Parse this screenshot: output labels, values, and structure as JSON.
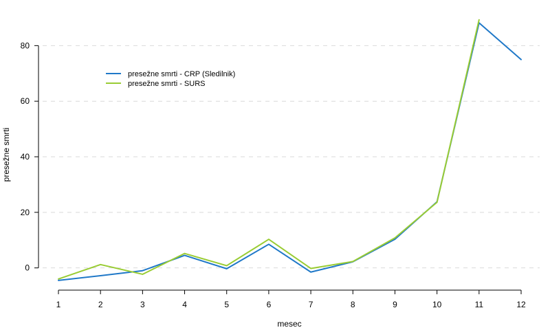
{
  "chart_data": {
    "type": "line",
    "title": "",
    "xlabel": "mesec",
    "ylabel": "presežne smrti",
    "x": [
      1,
      2,
      3,
      4,
      5,
      6,
      7,
      8,
      9,
      10,
      11,
      12
    ],
    "xlim": [
      1,
      12
    ],
    "ylim": [
      -8,
      89
    ],
    "yticks": [
      0,
      20,
      40,
      60,
      80
    ],
    "grid": true,
    "legend_position": "top-left",
    "series": [
      {
        "name": "presežne smrti - CRP (Sledilnik)",
        "color": "#1f78c8",
        "values": [
          -4.5,
          -2.8,
          -1.0,
          4.5,
          -0.3,
          8.5,
          -1.5,
          2.2,
          10.3,
          23.8,
          88.2,
          75.0
        ]
      },
      {
        "name": "presežne smrti - SURS",
        "color": "#99cc33",
        "values": [
          -4.0,
          1.2,
          -2.3,
          5.2,
          0.8,
          10.3,
          -0.2,
          2.3,
          10.8,
          23.6,
          89.3,
          null
        ]
      }
    ]
  }
}
